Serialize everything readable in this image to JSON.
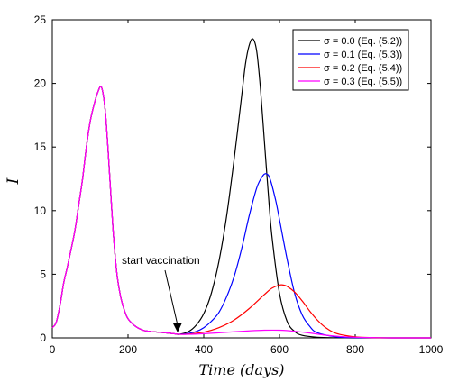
{
  "chart_data": {
    "type": "line",
    "xlabel": "Time (days)",
    "ylabel": "I",
    "xlim": [
      0,
      1000
    ],
    "ylim": [
      0,
      25
    ],
    "xticks": [
      "0",
      "200",
      "400",
      "600",
      "800",
      "1000"
    ],
    "yticks": [
      "0",
      "5",
      "10",
      "15",
      "20",
      "25"
    ],
    "grid": false,
    "legend_position": "top-right",
    "annotation": {
      "text": "start vaccination",
      "x": 330,
      "y": 0.3
    },
    "shared_x": [
      0,
      10,
      20,
      30,
      40,
      50,
      60,
      70,
      80,
      90,
      100,
      110,
      120,
      130,
      140,
      150,
      160,
      170,
      180,
      190,
      200,
      220,
      240,
      260,
      280,
      300,
      320,
      335
    ],
    "shared_y": [
      0.8,
      1.2,
      2.5,
      4.3,
      5.6,
      7.0,
      8.5,
      10.5,
      12.5,
      15.0,
      17.0,
      18.3,
      19.3,
      19.7,
      17.8,
      13.5,
      8.7,
      5.2,
      3.3,
      2.2,
      1.5,
      0.9,
      0.6,
      0.5,
      0.45,
      0.4,
      0.33,
      0.28
    ],
    "series": [
      {
        "name": "σ = 0.0 (Eq. (5.2))",
        "color": "#000000",
        "x": [
          335,
          360,
          380,
          400,
          420,
          440,
          460,
          480,
          500,
          510,
          520,
          530,
          540,
          550,
          560,
          570,
          580,
          600,
          620,
          640,
          660,
          700,
          750,
          800,
          900,
          1000
        ],
        "y": [
          0.28,
          0.5,
          1.0,
          1.9,
          3.5,
          6.0,
          9.5,
          14.0,
          19.0,
          21.5,
          23.0,
          23.5,
          22.5,
          19.5,
          15.5,
          11.5,
          8.0,
          3.5,
          1.3,
          0.5,
          0.2,
          0.05,
          0.01,
          0.0,
          0.0,
          0.0
        ]
      },
      {
        "name": "σ = 0.1 (Eq. (5.3))",
        "color": "#0000ff",
        "x": [
          335,
          360,
          380,
          400,
          420,
          440,
          460,
          480,
          500,
          520,
          540,
          555,
          565,
          575,
          590,
          600,
          620,
          640,
          660,
          680,
          700,
          750,
          800,
          900,
          1000
        ],
        "y": [
          0.28,
          0.35,
          0.5,
          0.8,
          1.3,
          2.0,
          3.2,
          4.8,
          7.0,
          9.6,
          11.8,
          12.7,
          12.9,
          12.5,
          10.8,
          9.3,
          6.2,
          3.5,
          1.8,
          0.9,
          0.4,
          0.08,
          0.02,
          0.0,
          0.0
        ]
      },
      {
        "name": "σ = 0.2 (Eq. (5.4))",
        "color": "#ff0000",
        "x": [
          335,
          360,
          400,
          440,
          480,
          520,
          560,
          580,
          600,
          610,
          620,
          640,
          660,
          680,
          700,
          720,
          750,
          800,
          850,
          900,
          1000
        ],
        "y": [
          0.28,
          0.3,
          0.45,
          0.8,
          1.4,
          2.3,
          3.4,
          3.9,
          4.15,
          4.15,
          4.05,
          3.6,
          2.9,
          2.1,
          1.4,
          0.85,
          0.35,
          0.08,
          0.02,
          0.0,
          0.0
        ]
      },
      {
        "name": "σ = 0.3 (Eq. (5.5))",
        "color": "#ff00ff",
        "x": [
          335,
          360,
          400,
          440,
          480,
          520,
          560,
          600,
          640,
          680,
          720,
          760,
          800,
          850,
          900,
          1000
        ],
        "y": [
          0.28,
          0.28,
          0.33,
          0.4,
          0.48,
          0.55,
          0.6,
          0.6,
          0.52,
          0.38,
          0.22,
          0.11,
          0.05,
          0.02,
          0.0,
          0.0
        ]
      }
    ]
  }
}
